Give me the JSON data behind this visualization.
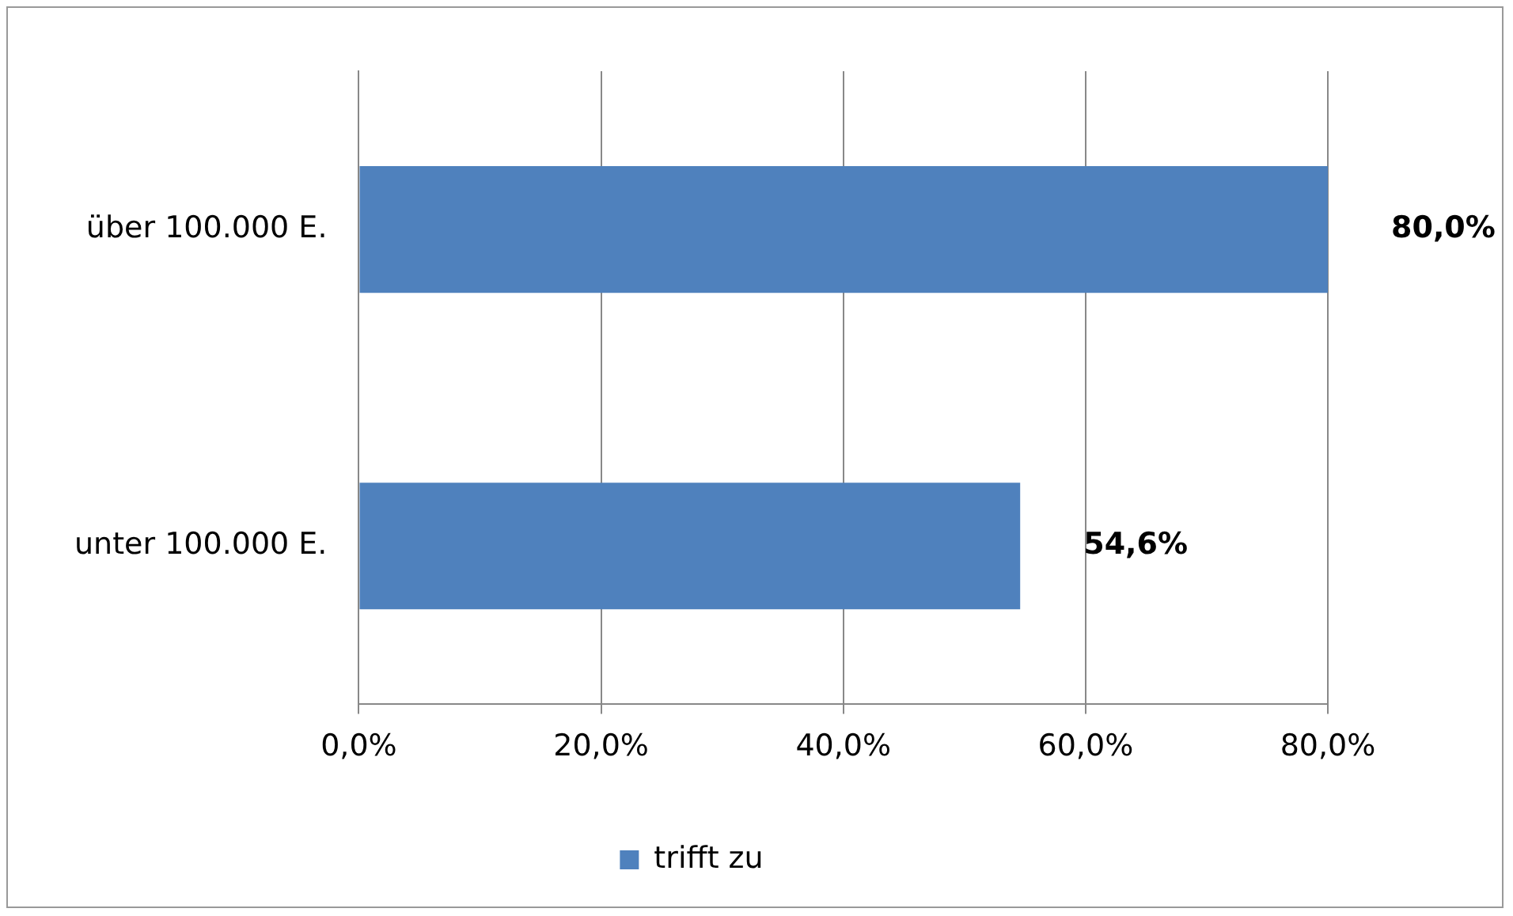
{
  "chart_data": {
    "type": "bar",
    "orientation": "horizontal",
    "categories": [
      "über 100.000 E.",
      "unter 100.000 E."
    ],
    "series": [
      {
        "name": "trifft zu",
        "color": "#4f81bd",
        "values": [
          80.0,
          54.6
        ],
        "value_labels": [
          "80,0%",
          "54,6%"
        ]
      }
    ],
    "xlim": [
      0,
      80
    ],
    "xticks": [
      {
        "value": 0,
        "label": "0,0%"
      },
      {
        "value": 20,
        "label": "20,0%"
      },
      {
        "value": 40,
        "label": "40,0%"
      },
      {
        "value": 60,
        "label": "60,0%"
      },
      {
        "value": 80,
        "label": "80,0%"
      }
    ],
    "grid": "x",
    "legend": "bottom"
  }
}
